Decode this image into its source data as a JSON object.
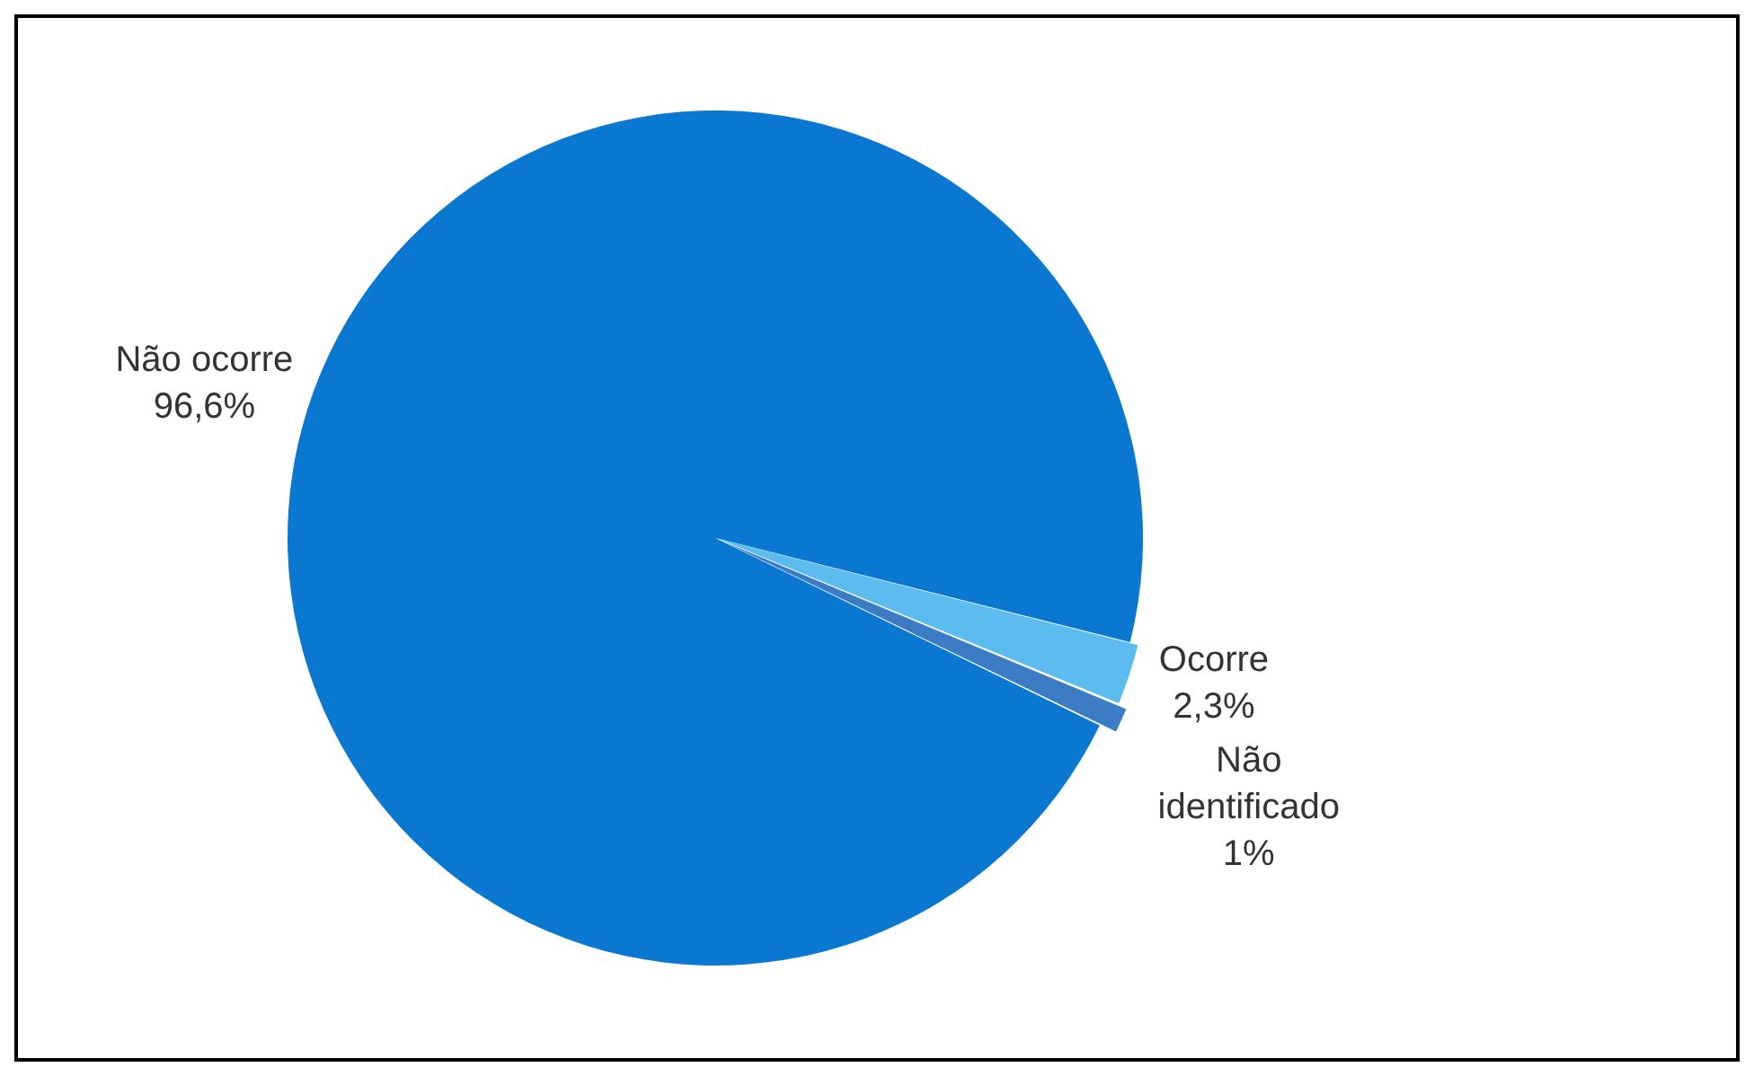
{
  "chart_data": {
    "type": "pie",
    "categories": [
      "Não ocorre",
      "Ocorre",
      "Não identificado"
    ],
    "values": [
      96.6,
      2.3,
      1
    ],
    "colors": [
      "#0a78d0",
      "#5cbcf0",
      "#3c7cc4"
    ],
    "value_labels": [
      "96,6%",
      "2,3%",
      "1%"
    ],
    "legend": false
  }
}
